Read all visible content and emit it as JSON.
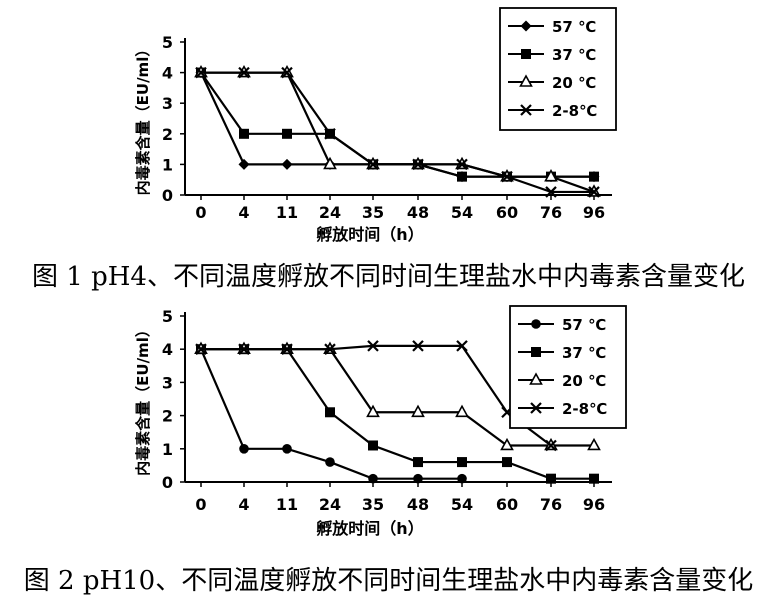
{
  "chart_data": [
    {
      "type": "line",
      "caption": "图 1 pH4、不同温度孵放不同时间生理盐水中内毒素含量变化",
      "xlabel": "孵放时间（h）",
      "ylabel": "内毒素含量（EU/ml）",
      "categories": [
        "0",
        "4",
        "11",
        "24",
        "35",
        "48",
        "54",
        "60",
        "76",
        "96"
      ],
      "ylim": [
        0,
        5
      ],
      "yticks": [
        "0",
        "1",
        "2",
        "3",
        "4",
        "5"
      ],
      "legend_position": "top-right",
      "series": [
        {
          "name": "57 ℃",
          "marker": "diamond",
          "values": [
            4,
            1,
            1,
            1,
            1,
            1,
            0.6,
            0.6,
            0.6,
            0.6
          ]
        },
        {
          "name": "37 ℃",
          "marker": "square",
          "values": [
            4,
            2,
            2,
            2,
            1,
            1,
            0.6,
            0.6,
            0.6,
            0.6
          ]
        },
        {
          "name": "20 ℃",
          "marker": "triangle",
          "values": [
            4,
            4,
            4,
            1,
            1,
            1,
            1,
            0.6,
            0.6,
            0.1
          ]
        },
        {
          "name": "2-8℃",
          "marker": "x",
          "values": [
            4,
            4,
            4,
            2,
            1,
            1,
            1,
            0.6,
            0.1,
            0.1
          ]
        }
      ]
    },
    {
      "type": "line",
      "caption": "图 2 pH10、不同温度孵放不同时间生理盐水中内毒素含量变化",
      "xlabel": "孵放时间（h）",
      "ylabel": "内毒素含量（EU/ml）",
      "categories": [
        "0",
        "4",
        "11",
        "24",
        "35",
        "48",
        "54",
        "60",
        "76",
        "96"
      ],
      "ylim": [
        0,
        5
      ],
      "yticks": [
        "0",
        "1",
        "2",
        "3",
        "4",
        "5"
      ],
      "legend_position": "top-right",
      "series": [
        {
          "name": "57 ℃",
          "marker": "circle",
          "values": [
            4,
            1,
            1,
            0.6,
            0.1,
            0.1,
            0.1,
            null,
            null,
            null
          ]
        },
        {
          "name": "37 ℃",
          "marker": "square",
          "values": [
            4,
            4,
            4,
            2.1,
            1.1,
            0.6,
            0.6,
            0.6,
            0.1,
            0.1
          ]
        },
        {
          "name": "20 ℃",
          "marker": "triangle",
          "values": [
            4,
            4,
            4,
            4,
            2.1,
            2.1,
            2.1,
            1.1,
            1.1,
            1.1
          ]
        },
        {
          "name": "2-8℃",
          "marker": "x",
          "values": [
            4,
            4,
            4,
            4,
            4.1,
            4.1,
            4.1,
            2.1,
            1.1,
            null
          ]
        }
      ]
    }
  ]
}
